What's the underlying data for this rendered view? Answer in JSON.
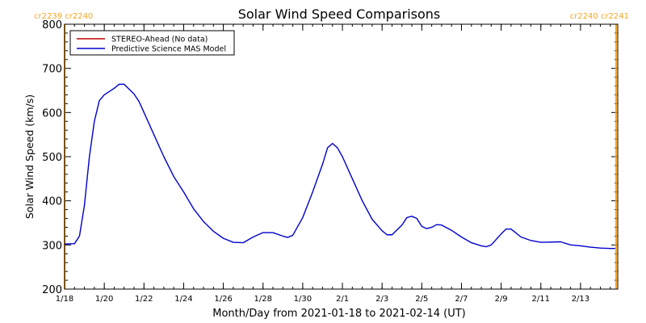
{
  "chart_data": {
    "type": "line",
    "title": "Solar Wind Speed Comparisons",
    "xlabel": "Month/Day from 2021-01-18 to 2021-02-14 (UT)",
    "ylabel": "Solar Wind Speed (km/s)",
    "x_range": [
      "2021-01-18",
      "2021-02-14T21:00"
    ],
    "ylim": [
      200,
      800
    ],
    "x_ticks": [
      {
        "date": "2021-01-18",
        "label": "1/18"
      },
      {
        "date": "2021-01-20",
        "label": "1/20"
      },
      {
        "date": "2021-01-22",
        "label": "1/22"
      },
      {
        "date": "2021-01-24",
        "label": "1/24"
      },
      {
        "date": "2021-01-26",
        "label": "1/26"
      },
      {
        "date": "2021-01-28",
        "label": "1/28"
      },
      {
        "date": "2021-01-30",
        "label": "1/30"
      },
      {
        "date": "2021-02-01",
        "label": "2/1"
      },
      {
        "date": "2021-02-03",
        "label": "2/3"
      },
      {
        "date": "2021-02-05",
        "label": "2/5"
      },
      {
        "date": "2021-02-07",
        "label": "2/7"
      },
      {
        "date": "2021-02-09",
        "label": "2/9"
      },
      {
        "date": "2021-02-11",
        "label": "2/11"
      },
      {
        "date": "2021-02-13",
        "label": "2/13"
      }
    ],
    "y_ticks": [
      200,
      300,
      400,
      500,
      600,
      700,
      800
    ],
    "legend": {
      "placement": "top-left",
      "entries": [
        {
          "label": "STEREO-Ahead (No data)",
          "color": "#c00000"
        },
        {
          "label": "Predictive Science MAS Model",
          "color": "#0000cc"
        }
      ]
    },
    "rotation_markers": [
      {
        "date": "2021-01-18",
        "label": "cr2239 cr2240"
      },
      {
        "date": "2021-02-14T19:00",
        "label": "cr2240 cr2241"
      }
    ],
    "series": [
      {
        "name": "Predictive Science MAS Model",
        "color": "#0000cc",
        "points": [
          [
            "2021-01-18T00:00",
            302
          ],
          [
            "2021-01-18T12:00",
            303
          ],
          [
            "2021-01-18T18:00",
            320
          ],
          [
            "2021-01-19T00:00",
            390
          ],
          [
            "2021-01-19T06:00",
            500
          ],
          [
            "2021-01-19T12:00",
            580
          ],
          [
            "2021-01-19T18:00",
            627
          ],
          [
            "2021-01-20T00:00",
            640
          ],
          [
            "2021-01-20T12:00",
            655
          ],
          [
            "2021-01-20T18:00",
            664
          ],
          [
            "2021-01-21T00:00",
            664
          ],
          [
            "2021-01-21T12:00",
            642
          ],
          [
            "2021-01-21T18:00",
            625
          ],
          [
            "2021-01-22T00:00",
            600
          ],
          [
            "2021-01-22T12:00",
            550
          ],
          [
            "2021-01-23T00:00",
            500
          ],
          [
            "2021-01-23T12:00",
            455
          ],
          [
            "2021-01-24T00:00",
            420
          ],
          [
            "2021-01-24T12:00",
            382
          ],
          [
            "2021-01-25T00:00",
            353
          ],
          [
            "2021-01-25T12:00",
            331
          ],
          [
            "2021-01-26T00:00",
            315
          ],
          [
            "2021-01-26T12:00",
            306
          ],
          [
            "2021-01-27T00:00",
            305
          ],
          [
            "2021-01-27T12:00",
            318
          ],
          [
            "2021-01-28T00:00",
            328
          ],
          [
            "2021-01-28T12:00",
            328
          ],
          [
            "2021-01-29T00:00",
            320
          ],
          [
            "2021-01-29T06:00",
            317
          ],
          [
            "2021-01-29T12:00",
            322
          ],
          [
            "2021-01-30T00:00",
            362
          ],
          [
            "2021-01-30T12:00",
            420
          ],
          [
            "2021-01-31T00:00",
            483
          ],
          [
            "2021-01-31T06:00",
            520
          ],
          [
            "2021-01-31T12:00",
            530
          ],
          [
            "2021-01-31T18:00",
            520
          ],
          [
            "2021-02-01T00:00",
            500
          ],
          [
            "2021-02-01T12:00",
            450
          ],
          [
            "2021-02-02T00:00",
            400
          ],
          [
            "2021-02-02T12:00",
            358
          ],
          [
            "2021-02-03T00:00",
            332
          ],
          [
            "2021-02-03T06:00",
            323
          ],
          [
            "2021-02-03T12:00",
            323
          ],
          [
            "2021-02-04T00:00",
            345
          ],
          [
            "2021-02-04T06:00",
            362
          ],
          [
            "2021-02-04T12:00",
            365
          ],
          [
            "2021-02-04T18:00",
            360
          ],
          [
            "2021-02-05T00:00",
            342
          ],
          [
            "2021-02-05T06:00",
            337
          ],
          [
            "2021-02-05T12:00",
            340
          ],
          [
            "2021-02-05T18:00",
            346
          ],
          [
            "2021-02-06T00:00",
            345
          ],
          [
            "2021-02-06T12:00",
            333
          ],
          [
            "2021-02-07T00:00",
            318
          ],
          [
            "2021-02-07T12:00",
            305
          ],
          [
            "2021-02-08T00:00",
            298
          ],
          [
            "2021-02-08T06:00",
            296
          ],
          [
            "2021-02-08T12:00",
            300
          ],
          [
            "2021-02-09T00:00",
            325
          ],
          [
            "2021-02-09T06:00",
            336
          ],
          [
            "2021-02-09T12:00",
            336
          ],
          [
            "2021-02-10T00:00",
            318
          ],
          [
            "2021-02-10T12:00",
            310
          ],
          [
            "2021-02-11T00:00",
            306
          ],
          [
            "2021-02-12T00:00",
            307
          ],
          [
            "2021-02-12T12:00",
            300
          ],
          [
            "2021-02-13T00:00",
            298
          ],
          [
            "2021-02-13T12:00",
            295
          ],
          [
            "2021-02-14T00:00",
            293
          ],
          [
            "2021-02-14T12:00",
            292
          ],
          [
            "2021-02-14T18:00",
            292
          ]
        ]
      }
    ]
  }
}
